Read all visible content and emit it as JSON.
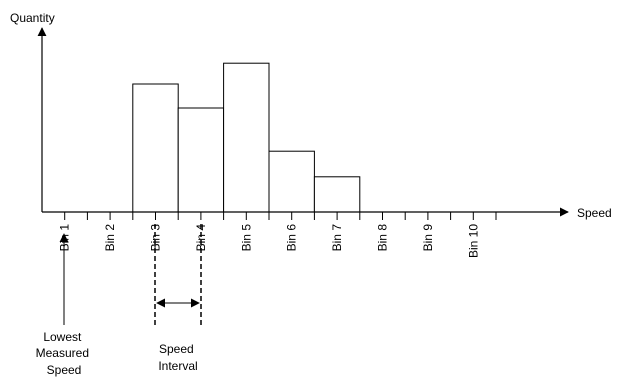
{
  "chart_data": {
    "type": "bar",
    "title": "",
    "ylabel": "Quantity",
    "xlabel": "Speed",
    "categories": [
      "Bin 1",
      "Bin 2",
      "Bin 3",
      "Bin 4",
      "Bin 5",
      "Bin 6",
      "Bin 7",
      "Bin 8",
      "Bin 9",
      "Bin 10"
    ],
    "values": [
      0,
      0,
      0.8,
      0.65,
      0.93,
      0.38,
      0.22,
      0,
      0,
      0
    ],
    "ylim": [
      0,
      1
    ],
    "grid": false,
    "annotations": {
      "lowest": [
        "Lowest",
        "Measured",
        "Speed"
      ],
      "interval": [
        "Speed",
        "Interval"
      ]
    }
  }
}
